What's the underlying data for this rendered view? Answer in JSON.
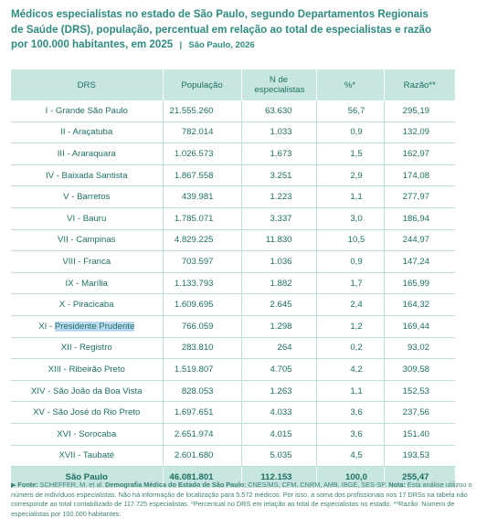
{
  "title": {
    "line1": "Médicos especialistas no estado de São Paulo, segundo Departamentos Regionais",
    "line2": "de Saúde (DRS), população, percentual em relação ao total de especialistas e razão",
    "line3": "por 100.000 habitantes, em 2025",
    "separator": "|",
    "place_year": "São Paulo, 2026"
  },
  "table": {
    "headers": [
      "DRS",
      "População",
      "N de especialistas",
      "%*",
      "Razão**"
    ],
    "rows": [
      {
        "drs": "I - Grande São Paulo",
        "pop": "21.555.260",
        "esp": "63.630",
        "pct": "56,7",
        "razao": "295,19"
      },
      {
        "drs": "II - Araçatuba",
        "pop": "782.014",
        "esp": "1.033",
        "pct": "0,9",
        "razao": "132,09"
      },
      {
        "drs": "III - Araraquara",
        "pop": "1.026.573",
        "esp": "1.673",
        "pct": "1,5",
        "razao": "162,97"
      },
      {
        "drs": "IV - Baixada Santista",
        "pop": "1.867.558",
        "esp": "3.251",
        "pct": "2,9",
        "razao": "174,08"
      },
      {
        "drs": "V - Barretos",
        "pop": "439.981",
        "esp": "1.223",
        "pct": "1,1",
        "razao": "277,97"
      },
      {
        "drs": "VI - Bauru",
        "pop": "1.785.071",
        "esp": "3.337",
        "pct": "3,0",
        "razao": "186,94"
      },
      {
        "drs": "VII - Campinas",
        "pop": "4.829.225",
        "esp": "11.830",
        "pct": "10,5",
        "razao": "244,97"
      },
      {
        "drs": "VIII - Franca",
        "pop": "703.597",
        "esp": "1.036",
        "pct": "0,9",
        "razao": "147,24"
      },
      {
        "drs": "IX - Marília",
        "pop": "1.133.793",
        "esp": "1.882",
        "pct": "1,7",
        "razao": "165,99"
      },
      {
        "drs": "X - Piracicaba",
        "pop": "1.609.695",
        "esp": "2.645",
        "pct": "2,4",
        "razao": "164,32"
      },
      {
        "drs_prefix": "XI - ",
        "drs_hl": "Presidente Prudente",
        "pop": "766.059",
        "esp": "1.298",
        "pct": "1,2",
        "razao": "169,44"
      },
      {
        "drs": "XII - Registro",
        "pop": "283.810",
        "esp": "264",
        "pct": "0,2",
        "razao": "93,02"
      },
      {
        "drs": "XIII - Ribeirão Preto",
        "pop": "1.519.807",
        "esp": "4.705",
        "pct": "4,2",
        "razao": "309,58"
      },
      {
        "drs": "XIV - São João da Boa Vista",
        "pop": "828.053",
        "esp": "1.263",
        "pct": "1,1",
        "razao": "152,53"
      },
      {
        "drs": "XV - São José do Rio Preto",
        "pop": "1.697.651",
        "esp": "4.033",
        "pct": "3,6",
        "razao": "237,56"
      },
      {
        "drs": "XVI - Sorocaba",
        "pop": "2.651.974",
        "esp": "4.015",
        "pct": "3,6",
        "razao": "151,40"
      },
      {
        "drs": "XVII - Taubaté",
        "pop": "2.601.680",
        "esp": "5.035",
        "pct": "4,5",
        "razao": "193,53"
      }
    ],
    "total": {
      "drs": "São Paulo",
      "pop": "46.081.801",
      "esp": "112.153",
      "pct": "100,0",
      "razao": "255,47"
    }
  },
  "note": {
    "arrow": "▶",
    "fonte_label": "Fonte:",
    "authors": "SCHEFFER, M. et al.",
    "work": "Demografia Médica do Estado de São Paulo",
    "sources": "; CNES/MS, CFM, CNRM, AMB, IBGE, SES-SP.",
    "nota_label": "Nota:",
    "nota_text": "Esta análise utilizou o número de indivíduos especialistas. Não há informação de localização para 5.572 médicos. Por isso, a soma dos profissionais nos 17 DRSs na tabela não corresponde ao total contabilizado de 117.725 especialistas. *Percentual no DRS em relação ao total de especialistas no estado. **Razão: Número de especialistas por 100.000 habitantes."
  }
}
